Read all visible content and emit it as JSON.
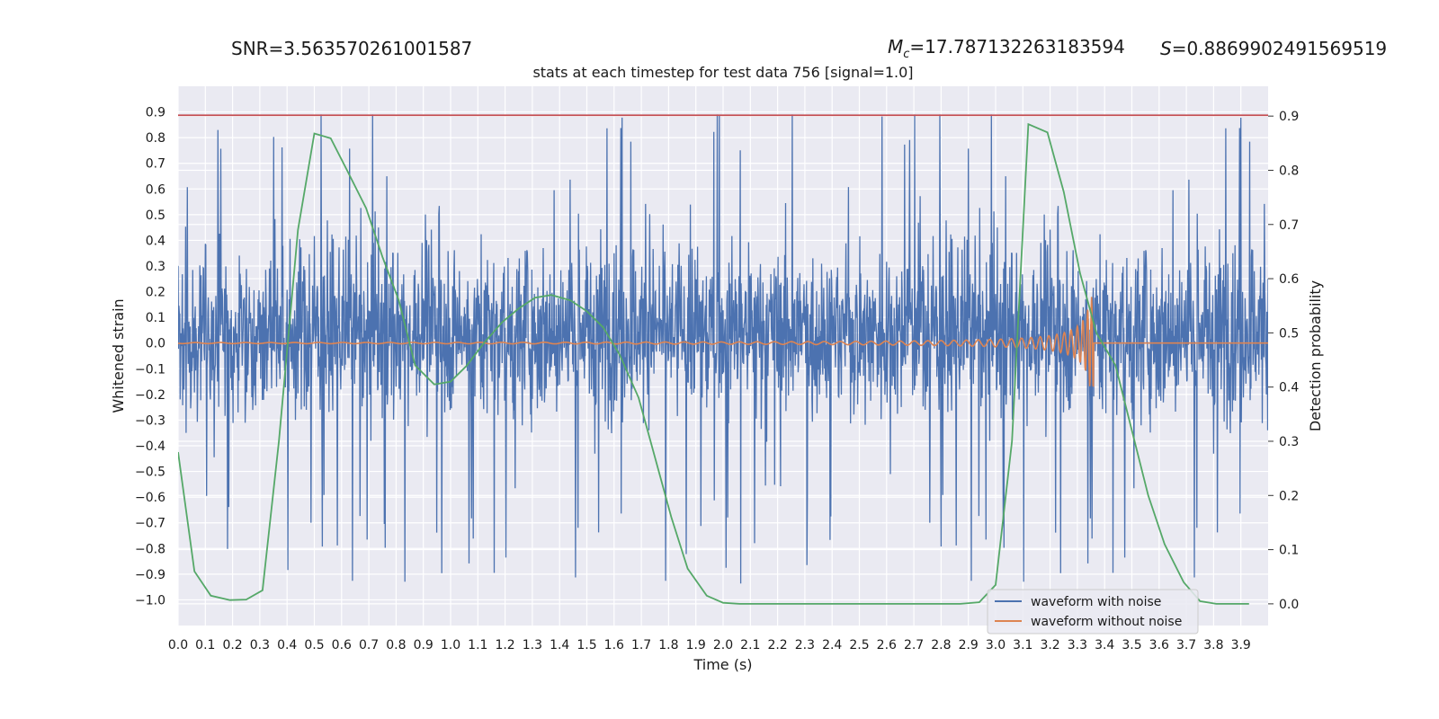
{
  "header": {
    "snr": "SNR=3.563570261001587",
    "mc_symbol": "M",
    "mc_sub": "c",
    "mc_value": "=17.787132263183594",
    "s_symbol": "S",
    "s_value": "=0.8869902491569519"
  },
  "chart_data": {
    "type": "line",
    "title": "stats at each timestep for test data 756 [signal=1.0]",
    "xlabel": "Time (s)",
    "ylabel": "Whitened strain",
    "ylabel_right": "Detection probability",
    "xlim": [
      0.0,
      4.0
    ],
    "ylim": [
      -1.1,
      1.0
    ],
    "ylim_right": [
      -0.04,
      0.955
    ],
    "xticks": [
      "0.0",
      "0.1",
      "0.2",
      "0.3",
      "0.4",
      "0.5",
      "0.6",
      "0.7",
      "0.8",
      "0.9",
      "1.0",
      "1.1",
      "1.2",
      "1.3",
      "1.4",
      "1.5",
      "1.6",
      "1.7",
      "1.8",
      "1.9",
      "2.0",
      "2.1",
      "2.2",
      "2.3",
      "2.4",
      "2.5",
      "2.6",
      "2.7",
      "2.8",
      "2.9",
      "3.0",
      "3.1",
      "3.2",
      "3.3",
      "3.4",
      "3.5",
      "3.6",
      "3.7",
      "3.8",
      "3.9"
    ],
    "yticks": [
      "0.9",
      "0.8",
      "0.7",
      "0.6",
      "0.5",
      "0.4",
      "0.3",
      "0.2",
      "0.1",
      "0.0",
      "−0.1",
      "−0.2",
      "−0.3",
      "−0.4",
      "−0.5",
      "−0.6",
      "−0.7",
      "−0.8",
      "−0.9",
      "−1.0"
    ],
    "yticks_right": [
      "0.9",
      "0.8",
      "0.7",
      "0.6",
      "0.5",
      "0.4",
      "0.3",
      "0.2",
      "0.1",
      "0.0"
    ],
    "threshold": 0.887,
    "grid": true,
    "legend": "lower-right",
    "colors": {
      "noise": "#4c72b0",
      "clean": "#dd8452",
      "prob": "#55a868",
      "threshold": "#c44e52",
      "background": "#eaeaf2"
    },
    "series": [
      {
        "name": "waveform with noise",
        "envelope_y": [
          -0.4,
          0.7
        ],
        "spike_range_y": [
          -1.0,
          0.89
        ]
      },
      {
        "name": "waveform without noise",
        "chirp_end_s": 3.36,
        "peak_amplitude": 0.18
      },
      {
        "x": [
          0.0,
          0.06,
          0.12,
          0.19,
          0.25,
          0.31,
          0.37,
          0.44,
          0.5,
          0.56,
          0.62,
          0.69,
          0.75,
          0.81,
          0.87,
          0.94,
          1.0,
          1.06,
          1.12,
          1.19,
          1.25,
          1.31,
          1.37,
          1.44,
          1.5,
          1.56,
          1.62,
          1.69,
          1.75,
          1.81,
          1.87,
          1.94,
          2.0,
          2.06,
          2.12,
          2.19,
          2.25,
          2.31,
          2.37,
          2.44,
          2.5,
          2.56,
          2.62,
          2.69,
          2.75,
          2.81,
          2.87,
          2.94,
          3.0,
          3.06,
          3.12,
          3.19,
          3.25,
          3.31,
          3.37,
          3.44,
          3.5,
          3.56,
          3.62,
          3.69,
          3.75,
          3.81,
          3.87,
          3.93
        ],
        "values": [
          0.28,
          0.06,
          0.015,
          0.007,
          0.008,
          0.025,
          0.3,
          0.69,
          0.868,
          0.859,
          0.8,
          0.73,
          0.64,
          0.56,
          0.44,
          0.405,
          0.41,
          0.44,
          0.48,
          0.52,
          0.545,
          0.565,
          0.57,
          0.56,
          0.54,
          0.51,
          0.46,
          0.38,
          0.27,
          0.16,
          0.065,
          0.015,
          0.002,
          0.0,
          0.0,
          0.0,
          0.0,
          0.0,
          0.0,
          0.0,
          0.0,
          0.0,
          0.0,
          0.0,
          0.0,
          0.0,
          0.0,
          0.003,
          0.035,
          0.3,
          0.885,
          0.87,
          0.76,
          0.61,
          0.5,
          0.44,
          0.32,
          0.2,
          0.11,
          0.04,
          0.005,
          0.0,
          0.0,
          0.0
        ]
      }
    ]
  }
}
